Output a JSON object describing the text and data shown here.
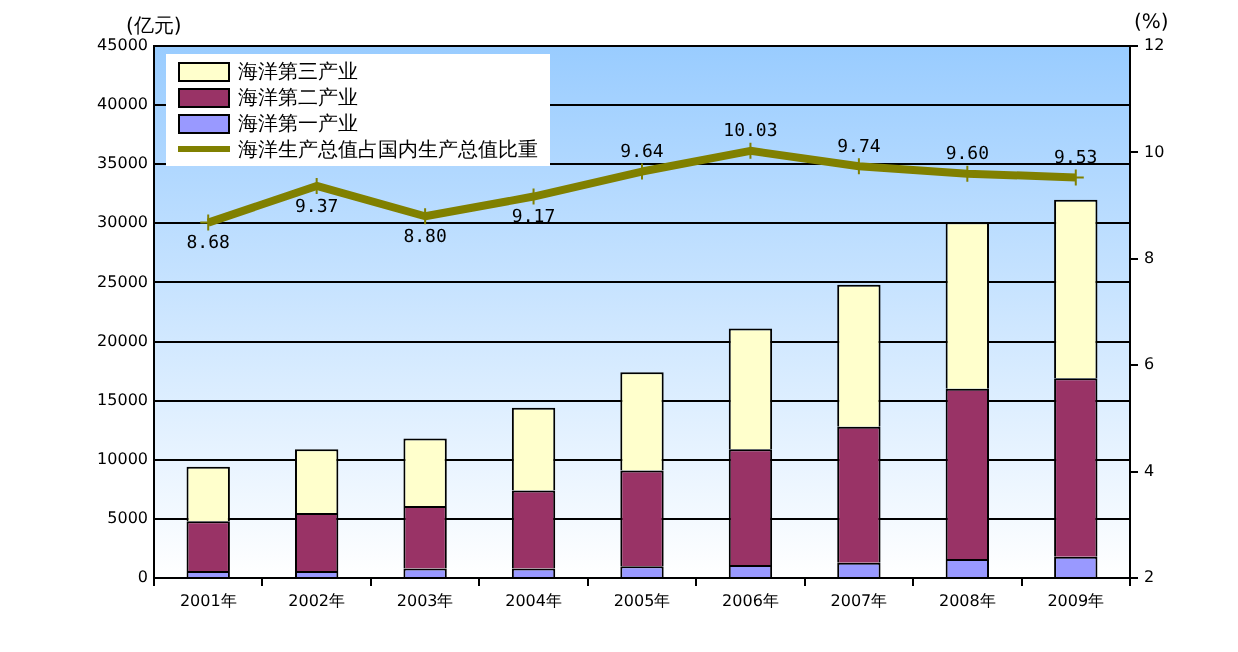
{
  "chart_data": {
    "type": "bar",
    "stacked": true,
    "ylabel": "(亿元)",
    "y2label": "(%)",
    "categories": [
      "2001年",
      "2002年",
      "2003年",
      "2004年",
      "2005年",
      "2006年",
      "2007年",
      "2008年",
      "2009年"
    ],
    "series": [
      {
        "name": "海洋第一产业",
        "color": "#9999ff",
        "values": [
          600,
          600,
          800,
          800,
          1000,
          1100,
          1300,
          1600,
          1800
        ]
      },
      {
        "name": "海洋第二产业",
        "color": "#993366",
        "values": [
          4200,
          4900,
          5300,
          6600,
          8100,
          9800,
          11500,
          14400,
          15100
        ]
      },
      {
        "name": "海洋第三产业",
        "color": "#ffffcc",
        "values": [
          4600,
          5400,
          5700,
          7000,
          8300,
          10200,
          12000,
          14100,
          15100
        ]
      },
      {
        "name": "海洋生产总值占国内生产总值比重",
        "type": "line",
        "axis": "y2",
        "color": "#808000",
        "marker": "cross",
        "values": [
          8.68,
          9.37,
          8.8,
          9.17,
          9.64,
          10.03,
          9.74,
          9.6,
          9.53
        ],
        "value_labels": [
          "8.68",
          "9.37",
          "8.80",
          "9.17",
          "9.64",
          "10.03",
          "9.74",
          "9.60",
          "9.53"
        ]
      }
    ],
    "ylim": [
      0,
      45000
    ],
    "yticks": [
      0,
      5000,
      10000,
      15000,
      20000,
      25000,
      30000,
      35000,
      40000,
      45000
    ],
    "y2lim": [
      2,
      12
    ],
    "y2ticks": [
      2,
      4,
      6,
      8,
      10,
      12
    ],
    "grid": "y",
    "legend": "top left"
  }
}
